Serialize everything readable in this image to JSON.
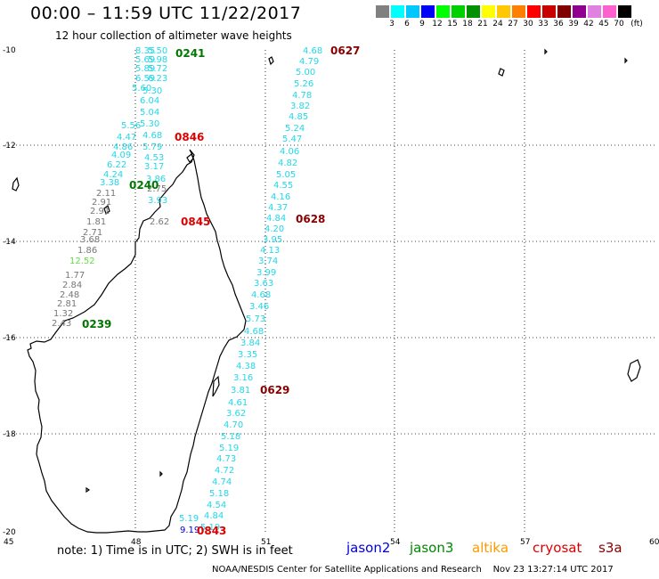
{
  "header": {
    "title": "00:00 – 11:59 UTC 11/22/2017",
    "subtitle": "12 hour collection of altimeter wave heights"
  },
  "legend": {
    "colors": [
      "#808080",
      "#00ffff",
      "#00c8ff",
      "#0000ff",
      "#00ff00",
      "#00d000",
      "#009000",
      "#ffff00",
      "#ffc800",
      "#ff8000",
      "#ff0000",
      "#c80000",
      "#800000",
      "#900090",
      "#e080e0",
      "#ff60d0",
      "#000000"
    ],
    "labels": [
      "3",
      "6",
      "9",
      "12",
      "15",
      "18",
      "21",
      "24",
      "27",
      "30",
      "33",
      "36",
      "39",
      "42",
      "45",
      "70"
    ],
    "unit": "(ft)"
  },
  "map": {
    "lat_ticks": [
      "-10",
      "-12",
      "-14",
      "-16",
      "-18",
      "-20"
    ],
    "lon_ticks": [
      "45",
      "48",
      "51",
      "54",
      "57",
      "60"
    ],
    "colors": {
      "gray": "#777777",
      "cyan": "#22d8e8",
      "lightgreen": "#66dd44",
      "blue": "#0000cc",
      "green": "#007700",
      "red": "#dd0000",
      "darkred": "#880000"
    },
    "time_labels": [
      "0241",
      "0846",
      "0240",
      "0845",
      "0239",
      "0627",
      "0628",
      "0629",
      "0843"
    ],
    "left_track_values": [
      "8.35",
      "5.50",
      "5.69",
      "5.98",
      "5.89",
      "5.72",
      "6.59",
      "6.23",
      "5.60",
      "5.30",
      "6.04",
      "5.04",
      "5.56",
      "5.30",
      "4.47",
      "4.68",
      "4.86",
      "5.79",
      "4.09",
      "4.53",
      "6.22",
      "3.17",
      "4.24",
      "3.86",
      "3.38",
      "2.11",
      "2.75",
      "2.91",
      "3.93",
      "2.91",
      "1.81",
      "2.62",
      "2.71",
      "3.68",
      "1.86",
      "12.52",
      "1.77",
      "2.84",
      "2.48",
      "2.81",
      "1.32",
      "2.43"
    ],
    "right_track_values": [
      "4.68",
      "4.79",
      "5.00",
      "5.26",
      "4.78",
      "3.82",
      "4.85",
      "5.24",
      "5.47",
      "4.06",
      "4.82",
      "5.05",
      "4.55",
      "4.16",
      "4.37",
      "4.84",
      "4.20",
      "3.95",
      "4.13",
      "3.74",
      "3.99",
      "3.63",
      "4.68",
      "3.46",
      "5.73",
      "4.68",
      "3.84",
      "3.35",
      "4.38",
      "3.16",
      "3.81",
      "4.61",
      "3.62",
      "4.70",
      "5.18",
      "5.19",
      "4.73",
      "4.72",
      "4.74",
      "5.18",
      "4.54",
      "4.84",
      "5.19",
      "9.19",
      "5.19"
    ]
  },
  "footer": {
    "note": "note: 1) Time is in UTC; 2) SWH is in feet",
    "satellites": [
      {
        "name": "jason2",
        "color": "#0000dd"
      },
      {
        "name": "jason3",
        "color": "#008800"
      },
      {
        "name": "altika",
        "color": "#ff9900"
      },
      {
        "name": "cryosat",
        "color": "#dd0000"
      },
      {
        "name": "s3a",
        "color": "#880000"
      }
    ],
    "credit": "NOAA/NESDIS Center for Satellite Applications and Research    Nov 23 13:27:14 UTC 2017"
  }
}
